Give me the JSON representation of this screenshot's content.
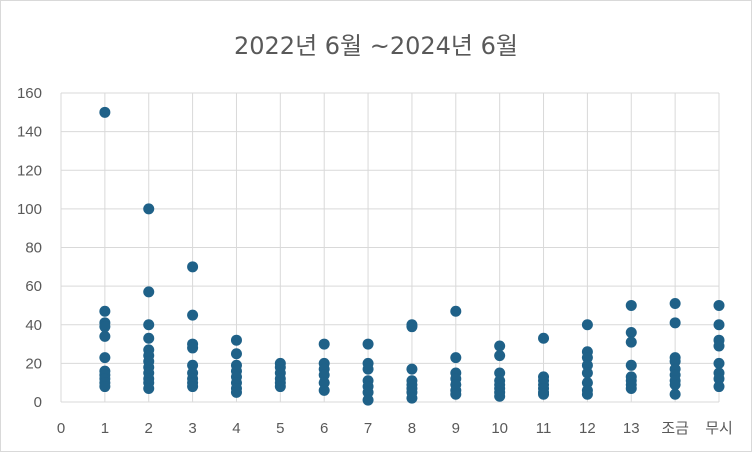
{
  "chart_data": {
    "type": "scatter",
    "title": "2022년 6월 ~2024년 6월",
    "xlabel": "",
    "ylabel": "",
    "x_ticks": [
      "0",
      "1",
      "2",
      "3",
      "4",
      "5",
      "6",
      "7",
      "8",
      "9",
      "10",
      "11",
      "12",
      "13",
      "조금",
      "무시"
    ],
    "y_ticks": [
      "0",
      "20",
      "40",
      "60",
      "80",
      "100",
      "120",
      "140",
      "160"
    ],
    "ylim": [
      0,
      160
    ],
    "grid": true,
    "legend": "none",
    "marker_color": "#1f6188",
    "grid_color": "#d9d9d9",
    "points": [
      {
        "x": "1",
        "y": [
          150,
          47,
          41,
          39,
          34,
          23,
          16,
          14,
          12,
          10,
          8
        ]
      },
      {
        "x": "2",
        "y": [
          100,
          57,
          40,
          33,
          27,
          24,
          21,
          18,
          15,
          12,
          10,
          7
        ]
      },
      {
        "x": "3",
        "y": [
          70,
          45,
          30,
          28,
          19,
          15,
          12,
          10,
          8
        ]
      },
      {
        "x": "4",
        "y": [
          32,
          25,
          19,
          16,
          13,
          10,
          7,
          5
        ]
      },
      {
        "x": "5",
        "y": [
          20,
          18,
          15,
          12,
          10,
          8
        ]
      },
      {
        "x": "6",
        "y": [
          30,
          20,
          17,
          14,
          10,
          6
        ]
      },
      {
        "x": "7",
        "y": [
          30,
          20,
          17,
          11,
          8,
          5,
          1
        ]
      },
      {
        "x": "8",
        "y": [
          40,
          39,
          17,
          11,
          9,
          7,
          5,
          2
        ]
      },
      {
        "x": "9",
        "y": [
          47,
          23,
          15,
          12,
          9,
          6,
          4
        ]
      },
      {
        "x": "10",
        "y": [
          29,
          24,
          15,
          11,
          9,
          7,
          5,
          3
        ]
      },
      {
        "x": "11",
        "y": [
          33,
          13,
          11,
          9,
          7,
          5,
          4
        ]
      },
      {
        "x": "12",
        "y": [
          40,
          26,
          23,
          19,
          15,
          10,
          6,
          4
        ]
      },
      {
        "x": "13",
        "y": [
          50,
          36,
          31,
          19,
          13,
          11,
          9,
          7
        ]
      },
      {
        "x": "조금",
        "y": [
          51,
          41,
          23,
          21,
          17,
          14,
          11,
          9,
          4
        ]
      },
      {
        "x": "무시",
        "y": [
          50,
          40,
          32,
          29,
          20,
          15,
          12,
          8
        ]
      }
    ]
  }
}
